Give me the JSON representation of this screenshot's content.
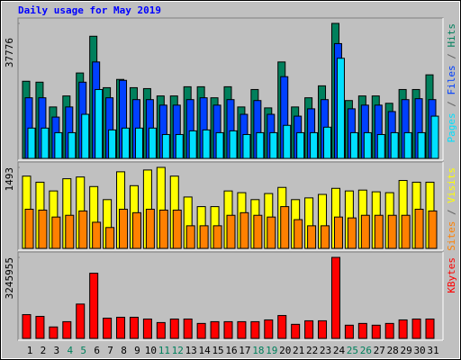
{
  "chart_data": [
    {
      "type": "bar",
      "title": "Daily usage for May 2019",
      "title_color": "#0000ff",
      "legend_separator": " / ",
      "separator_color": "#606060",
      "ylim": [
        0,
        37776
      ],
      "yticks": [
        37776
      ],
      "series": [
        {
          "name": "Hits",
          "color": "#00805c",
          "values": [
            21588,
            21331,
            14392,
            17476,
            23901,
            34181,
            19789,
            22102,
            19789,
            19532,
            17476,
            17476,
            20046,
            20046,
            16962,
            20046,
            14392,
            19275,
            14135,
            26985,
            14392,
            16962,
            20303,
            37776,
            16191,
            17476,
            17476,
            15420,
            19275,
            19275,
            23387
          ]
        },
        {
          "name": "Files",
          "color": "#0040ff",
          "values": [
            16962,
            16962,
            11565,
            14392,
            21331,
            26985,
            16962,
            21845,
            16448,
            16448,
            14906,
            14906,
            16448,
            16962,
            14906,
            16448,
            12336,
            16191,
            12336,
            22873,
            11822,
            13878,
            16448,
            32125,
            13878,
            14906,
            14906,
            13107,
            16448,
            16705,
            16448
          ]
        },
        {
          "name": "Pages",
          "color": "#00e0ff",
          "values": [
            8481,
            8481,
            7196,
            7196,
            12336,
            19275,
            7967,
            8481,
            8481,
            8481,
            6682,
            6682,
            7710,
            7967,
            7196,
            7710,
            6682,
            7196,
            7196,
            9252,
            7196,
            7196,
            8738,
            28013,
            7196,
            7196,
            6682,
            7196,
            7196,
            7196,
            11822
          ]
        }
      ]
    },
    {
      "type": "bar",
      "ylim": [
        0,
        1493
      ],
      "yticks": [
        1493
      ],
      "series": [
        {
          "name": "Visits",
          "color": "#ffff00",
          "values": [
            1332,
            1220,
            1059,
            1284,
            1316,
            1140,
            899,
            1412,
            1156,
            1445,
            1493,
            1332,
            947,
            770,
            770,
            1059,
            1027,
            899,
            1011,
            1124,
            899,
            931,
            995,
            1107,
            1059,
            1075,
            1043,
            1027,
            1252,
            1220,
            1220
          ]
        },
        {
          "name": "Sites",
          "color": "#ff8000",
          "values": [
            722,
            706,
            578,
            610,
            690,
            482,
            385,
            722,
            658,
            722,
            706,
            706,
            417,
            417,
            417,
            610,
            658,
            610,
            578,
            770,
            530,
            417,
            417,
            578,
            562,
            610,
            610,
            610,
            610,
            722,
            690
          ]
        }
      ]
    },
    {
      "type": "bar",
      "ylim": [
        0,
        3245955
      ],
      "yticks": [
        3245955
      ],
      "categories": [
        "1",
        "2",
        "3",
        "4",
        "5",
        "6",
        "7",
        "8",
        "9",
        "10",
        "11",
        "12",
        "13",
        "14",
        "15",
        "16",
        "17",
        "18",
        "19",
        "20",
        "21",
        "22",
        "23",
        "24",
        "25",
        "26",
        "27",
        "28",
        "29",
        "30",
        "31"
      ],
      "category_colors": [
        "#000000",
        "#000000",
        "#000000",
        "#00805c",
        "#00805c",
        "#000000",
        "#000000",
        "#000000",
        "#000000",
        "#000000",
        "#00805c",
        "#00805c",
        "#000000",
        "#000000",
        "#000000",
        "#000000",
        "#000000",
        "#00805c",
        "#00805c",
        "#000000",
        "#000000",
        "#000000",
        "#000000",
        "#000000",
        "#00805c",
        "#00805c",
        "#000000",
        "#000000",
        "#000000",
        "#000000",
        "#000000"
      ],
      "series": [
        {
          "name": "KBytes",
          "color": "#ff0000",
          "values": [
            952614,
            882050,
            458666,
            670358,
            1375998,
            2610868,
            811486,
            846768,
            846768,
            776204,
            635076,
            776204,
            776204,
            599794,
            670358,
            670358,
            670358,
            670358,
            740922,
            917332,
            564512,
            705640,
            705640,
            3245955,
            529230,
            599794,
            529230,
            599794,
            740922,
            776204,
            776204
          ]
        }
      ]
    }
  ]
}
